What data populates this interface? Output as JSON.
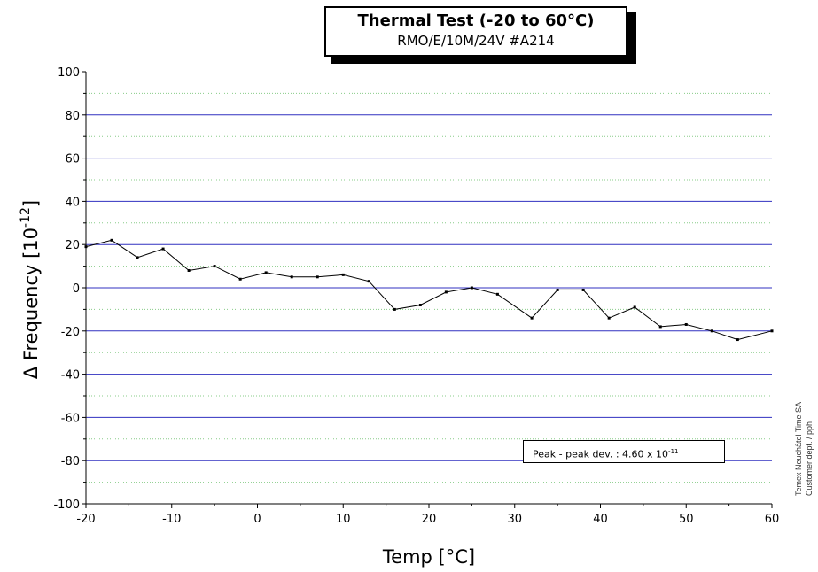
{
  "chart_data": {
    "type": "line",
    "title": "Thermal Test  (-20 to 60°C)",
    "subtitle": "RMO/E/10M/24V #A214",
    "xlabel": "Temp [°C]",
    "ylabel_prefix": "Δ Frequency [10",
    "ylabel_exp": "-12",
    "ylabel_suffix": "]",
    "xlim": [
      -20,
      60
    ],
    "ylim": [
      -100,
      100
    ],
    "xticks": [
      "-20",
      "-10",
      "0",
      "10",
      "20",
      "30",
      "40",
      "50",
      "60"
    ],
    "yticks": [
      "100",
      "80",
      "60",
      "40",
      "20",
      "0",
      "-20",
      "-40",
      "-60",
      "-80",
      "-100"
    ],
    "grid": true,
    "series": [
      {
        "color": "#000000",
        "x": [
          -20,
          -17,
          -14,
          -11,
          -8,
          -5,
          -2,
          1,
          4,
          7,
          10,
          13,
          16,
          19,
          22,
          25,
          28,
          32,
          35,
          38,
          41,
          44,
          47,
          50,
          53,
          56,
          60
        ],
        "y": [
          19,
          22,
          14,
          18,
          8,
          10,
          4,
          7,
          5,
          5,
          6,
          3,
          -10,
          -8,
          -2,
          0,
          -3,
          -14,
          -1,
          -1,
          -14,
          -9,
          -18,
          -17,
          -20,
          -24,
          -20
        ]
      }
    ],
    "annotation": {
      "text": "Peak - peak dev. : 4.60 x 10",
      "exp": "-11"
    },
    "side_note_1": "Temex Neuchâtel Time SA",
    "side_note_2": "Customer dept. / pph",
    "colors": {
      "major_grid": "#3030c0",
      "minor_grid": "#88cc88",
      "line": "#000000"
    }
  }
}
